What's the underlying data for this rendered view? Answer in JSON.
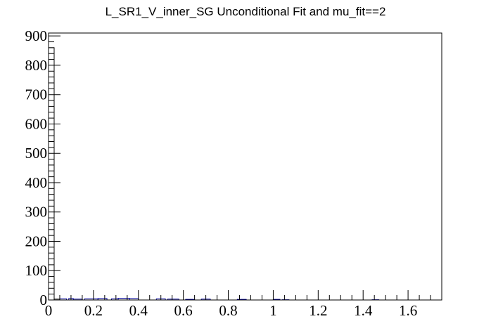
{
  "chart_data": {
    "type": "bar",
    "title": "L_SR1_V_inner_SG Unconditional Fit and mu_fit==2",
    "xlabel": "",
    "ylabel": "",
    "xlim": [
      0,
      1.75
    ],
    "ylim": [
      0,
      910
    ],
    "x_major_ticks": [
      0,
      0.2,
      0.4,
      0.6,
      0.8,
      1,
      1.2,
      1.4,
      1.6
    ],
    "x_tick_labels": [
      "0",
      "0.2",
      "0.4",
      "0.6",
      "0.8",
      "1",
      "1.2",
      "1.4",
      "1.6"
    ],
    "y_major_ticks": [
      0,
      100,
      200,
      300,
      400,
      500,
      600,
      700,
      800,
      900
    ],
    "y_tick_labels": [
      "0",
      "100",
      "200",
      "300",
      "400",
      "500",
      "600",
      "700",
      "800",
      "900"
    ],
    "grid": false,
    "legend": "none",
    "series": [
      {
        "color": "#000000",
        "bins": [
          {
            "x0": 0.0,
            "x1": 0.025,
            "value": 860
          },
          {
            "x0": 0.025,
            "x1": 0.05,
            "value": 3
          }
        ]
      },
      {
        "color": "#000099",
        "bins": [
          {
            "x0": 0.05,
            "x1": 0.08,
            "value": 4
          },
          {
            "x0": 0.09,
            "x1": 0.11,
            "value": 5
          },
          {
            "x0": 0.11,
            "x1": 0.15,
            "value": 3
          },
          {
            "x0": 0.16,
            "x1": 0.22,
            "value": 4
          },
          {
            "x0": 0.22,
            "x1": 0.26,
            "value": 5
          },
          {
            "x0": 0.28,
            "x1": 0.31,
            "value": 4
          },
          {
            "x0": 0.31,
            "x1": 0.36,
            "value": 6
          },
          {
            "x0": 0.36,
            "x1": 0.4,
            "value": 5
          },
          {
            "x0": 0.48,
            "x1": 0.52,
            "value": 4
          },
          {
            "x0": 0.53,
            "x1": 0.58,
            "value": 3
          },
          {
            "x0": 0.61,
            "x1": 0.65,
            "value": 2
          },
          {
            "x0": 0.68,
            "x1": 0.72,
            "value": 3
          },
          {
            "x0": 0.84,
            "x1": 0.88,
            "value": 2
          },
          {
            "x0": 1.0,
            "x1": 1.03,
            "value": 2
          },
          {
            "x0": 1.04,
            "x1": 1.07,
            "value": 1
          },
          {
            "x0": 1.44,
            "x1": 1.47,
            "value": 1
          }
        ]
      }
    ]
  }
}
